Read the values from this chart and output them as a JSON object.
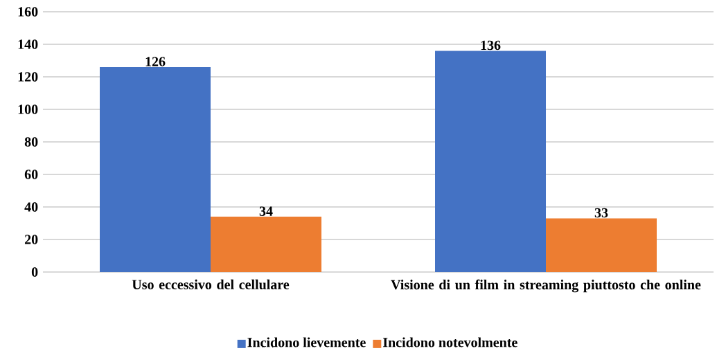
{
  "chart_data": {
    "type": "bar",
    "categories": [
      "Uso eccessivo del cellulare",
      "Visione di un film in streaming piuttosto che online"
    ],
    "series": [
      {
        "name": "Incidono lievemente",
        "color": "#4472c4",
        "values": [
          126,
          136
        ]
      },
      {
        "name": "Incidono notevolmente",
        "color": "#ed7d31",
        "values": [
          34,
          33
        ]
      }
    ],
    "ylim": [
      0,
      160
    ],
    "yticks": [
      0,
      20,
      40,
      60,
      80,
      100,
      120,
      140,
      160
    ],
    "grid": "y",
    "legend": "bottom",
    "data_labels": true
  }
}
